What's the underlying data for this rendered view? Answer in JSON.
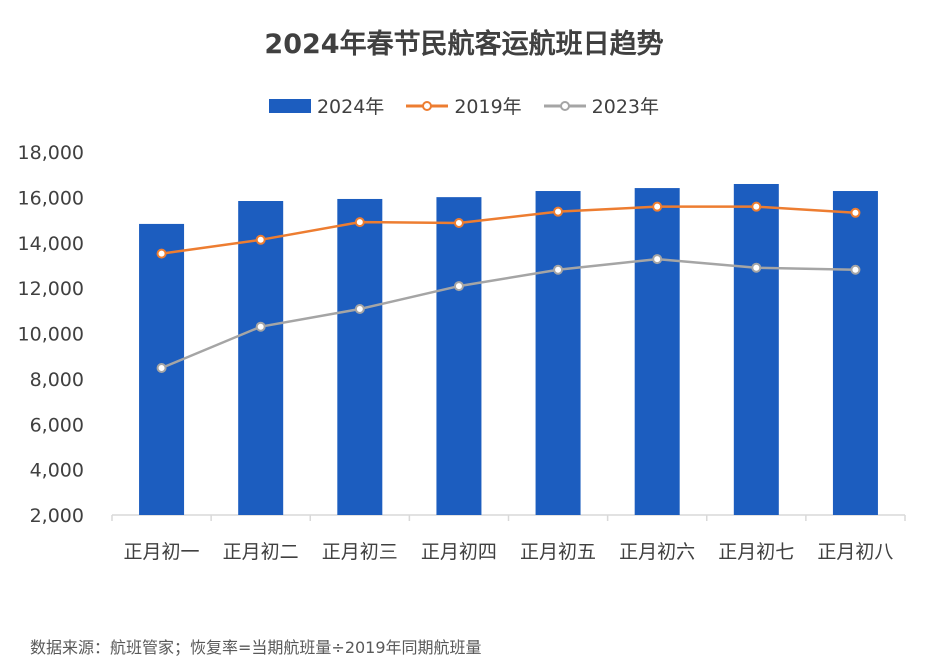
{
  "chart_data": {
    "type": "bar+line",
    "title": "2024年春节民航客运航班日趋势",
    "categories": [
      "正月初一",
      "正月初二",
      "正月初三",
      "正月初四",
      "正月初五",
      "正月初六",
      "正月初七",
      "正月初八"
    ],
    "series": [
      {
        "name": "2024年",
        "type": "bar",
        "color": "#1C5DBF",
        "values": [
          14830,
          15840,
          15930,
          16010,
          16280,
          16410,
          16590,
          16280
        ]
      },
      {
        "name": "2019年",
        "type": "line",
        "color": "#ED7D31",
        "values": [
          13520,
          14130,
          14910,
          14870,
          15370,
          15590,
          15590,
          15320
        ]
      },
      {
        "name": "2023年",
        "type": "line",
        "color": "#A5A5A5",
        "values": [
          8480,
          10300,
          11080,
          12090,
          12810,
          13280,
          12900,
          12810
        ]
      }
    ],
    "yticks": [
      "2,000",
      "4,000",
      "6,000",
      "8,000",
      "10,000",
      "12,000",
      "14,000",
      "16,000",
      "18,000"
    ],
    "ylim": [
      2000,
      18000
    ],
    "grid": false,
    "legend": "top"
  },
  "source": "数据来源：航班管家；恢复率=当期航班量÷2019年同期航班量"
}
